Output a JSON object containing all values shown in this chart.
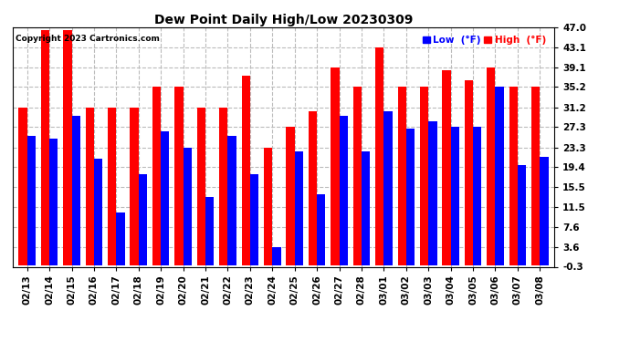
{
  "title": "Dew Point Daily High/Low 20230309",
  "copyright": "Copyright 2023 Cartronics.com",
  "legend_low": "Low  (°F)",
  "legend_high": "High  (°F)",
  "low_color": "blue",
  "high_color": "red",
  "background_color": "#ffffff",
  "grid_color": "#bbbbbb",
  "yticks": [
    -0.3,
    3.6,
    7.6,
    11.5,
    15.5,
    19.4,
    23.3,
    27.3,
    31.2,
    35.2,
    39.1,
    43.1,
    47.0
  ],
  "ylim": [
    -0.3,
    47.0
  ],
  "dates": [
    "02/13",
    "02/14",
    "02/15",
    "02/16",
    "02/17",
    "02/18",
    "02/19",
    "02/20",
    "02/21",
    "02/22",
    "02/23",
    "02/24",
    "02/25",
    "02/26",
    "02/27",
    "02/28",
    "03/01",
    "03/02",
    "03/03",
    "03/04",
    "03/05",
    "03/06",
    "03/07",
    "03/08"
  ],
  "high_values": [
    31.2,
    46.5,
    46.5,
    31.2,
    31.2,
    31.2,
    35.2,
    35.2,
    31.2,
    31.2,
    37.5,
    23.3,
    27.3,
    30.5,
    39.1,
    35.2,
    43.1,
    35.2,
    35.2,
    38.5,
    36.5,
    39.1,
    35.2,
    35.2
  ],
  "low_values": [
    25.5,
    25.0,
    29.5,
    21.0,
    10.5,
    18.0,
    26.5,
    23.3,
    13.5,
    25.5,
    18.0,
    3.6,
    22.5,
    14.0,
    29.5,
    22.5,
    30.5,
    27.0,
    28.5,
    27.3,
    27.3,
    35.2,
    19.8,
    21.5
  ],
  "bar_width": 0.38,
  "title_fontsize": 10,
  "tick_fontsize": 7.5,
  "copyright_fontsize": 6.5
}
